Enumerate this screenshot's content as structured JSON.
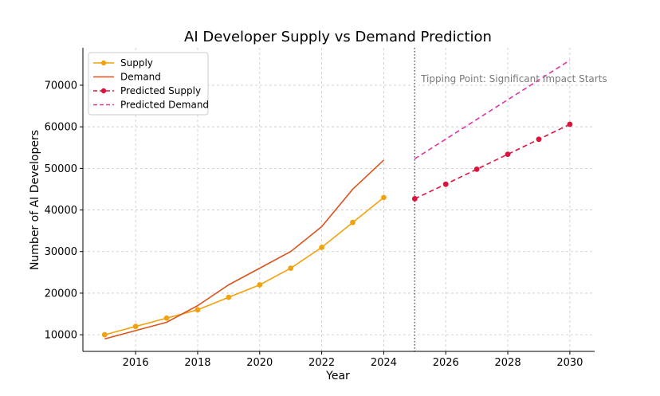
{
  "chart_data": {
    "type": "line",
    "title": "AI Developer Supply vs Demand Prediction",
    "xlabel": "Year",
    "ylabel": "Number of AI Developers",
    "xlim": [
      2014.3,
      2030.8
    ],
    "ylim": [
      6000,
      79000
    ],
    "x_ticks": [
      2016,
      2018,
      2020,
      2022,
      2024,
      2026,
      2028,
      2030
    ],
    "y_ticks": [
      10000,
      20000,
      30000,
      40000,
      50000,
      60000,
      70000
    ],
    "grid": true,
    "legend_position": "top-left",
    "series": [
      {
        "name": "Supply",
        "color": "#f2a20d",
        "style": "solid",
        "markers": true,
        "x": [
          2015,
          2016,
          2017,
          2018,
          2019,
          2020,
          2021,
          2022,
          2023,
          2024
        ],
        "y": [
          10000,
          12000,
          14000,
          16000,
          19000,
          22000,
          26000,
          31000,
          37000,
          43000
        ]
      },
      {
        "name": "Demand",
        "color": "#d9541e",
        "style": "solid",
        "markers": false,
        "x": [
          2015,
          2016,
          2017,
          2018,
          2019,
          2020,
          2021,
          2022,
          2023,
          2024
        ],
        "y": [
          9000,
          11000,
          13000,
          17000,
          22000,
          26000,
          30000,
          36000,
          45000,
          52000
        ]
      },
      {
        "name": "Predicted Supply",
        "color": "#dc143c",
        "style": "dashed",
        "markers": true,
        "x": [
          2025,
          2026,
          2027,
          2028,
          2029,
          2030
        ],
        "y": [
          42700,
          46200,
          49800,
          53400,
          57000,
          60600
        ]
      },
      {
        "name": "Predicted Demand",
        "color": "#e0359f",
        "style": "dashed",
        "markers": false,
        "x": [
          2025,
          2030
        ],
        "y": [
          52300,
          76000
        ]
      }
    ],
    "vline": {
      "x": 2025,
      "style": "dotted",
      "color": "#444444"
    },
    "annotation": {
      "text": "Tipping Point: Significant Impact Starts",
      "x": 2025.2,
      "y": 71500
    }
  }
}
